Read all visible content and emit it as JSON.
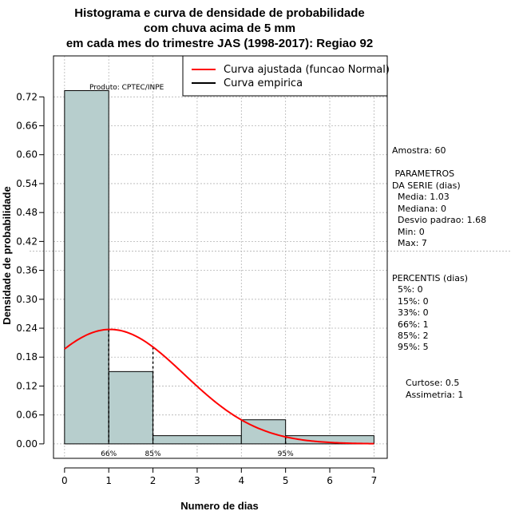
{
  "chart_data": {
    "type": "bar",
    "title": [
      "Histograma e curva de densidade de probabilidade",
      "com chuva acima de 5 mm",
      "em cada mes do trimestre JAS (1998-2017): Regiao 92"
    ],
    "xlabel": "Numero de dias",
    "ylabel": "Densidade de probabilidade",
    "xlim": [
      -0.25,
      7.3
    ],
    "ylim": [
      -0.03,
      0.805
    ],
    "x_ticks": [
      0,
      1,
      2,
      3,
      4,
      5,
      6,
      7
    ],
    "y_ticks": [
      0.0,
      0.06,
      0.12,
      0.18,
      0.24,
      0.3,
      0.36,
      0.42,
      0.48,
      0.54,
      0.6,
      0.66,
      0.72
    ],
    "y_tick_labels": [
      "0.00",
      "0.06",
      "0.12",
      "0.18",
      "0.24",
      "0.30",
      "0.36",
      "0.42",
      "0.48",
      "0.54",
      "0.60",
      "0.66",
      "0.72"
    ],
    "bins": [
      {
        "from": 0,
        "to": 1,
        "density": 0.733
      },
      {
        "from": 1,
        "to": 2,
        "density": 0.15
      },
      {
        "from": 2,
        "to": 4,
        "density": 0.017
      },
      {
        "from": 4,
        "to": 5,
        "density": 0.05
      },
      {
        "from": 5,
        "to": 7,
        "density": 0.017
      }
    ],
    "normal_fit": {
      "mean": 1.03,
      "sd": 1.68,
      "x_from": 0,
      "x_to": 7
    },
    "percentile_markers": [
      {
        "x": 1,
        "label": "66%"
      },
      {
        "x": 2,
        "label": "85%"
      },
      {
        "x": 5,
        "label": "95%"
      }
    ],
    "reference_line_y": 0.4,
    "grid": true,
    "product_label": "Produto: CPTEC/INPE",
    "legend": {
      "position": "top-right",
      "entries": [
        {
          "label": "Curva ajustada (funcao Normal)",
          "color": "#ff0000"
        },
        {
          "label": "Curva empirica",
          "color": "#000000"
        }
      ]
    },
    "side_panel": [
      "Amostra: 60",
      " PARAMETROS",
      "DA SERIE (dias)",
      "  Media: 1.03",
      "  Mediana: 0",
      "  Desvio padrao: 1.68",
      "  Min: 0",
      "  Max: 7",
      "PERCENTIS (dias)",
      "  5%: 0",
      "  15%: 0",
      "  33%: 0",
      "  66%: 1",
      "  85%: 2",
      "  95%: 5",
      "Curtose: 0.5",
      "Assimetria: 1"
    ],
    "colors": {
      "bar_fill": "#b7cecd",
      "bar_stroke": "#000000",
      "curve": "#ff0000",
      "grid": "#b4b4b4"
    }
  }
}
